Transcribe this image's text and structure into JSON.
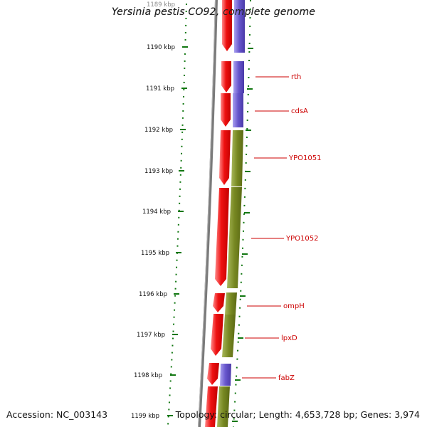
{
  "title": "Yersinia pestis CO92, complete genome",
  "footer": {
    "accession": "Accession: NC_003143",
    "topology": "Topology: circular; Length: 4,653,728 bp; Genes: 3,974"
  },
  "ruler_labels": [
    "1189 kbp",
    "1190 kbp",
    "1191 kbp",
    "1192 kbp",
    "1193 kbp",
    "1194 kbp",
    "1195 kbp",
    "1196 kbp",
    "1197 kbp",
    "1198 kbp",
    "1199 kbp"
  ],
  "colors": {
    "forward_strand": "#ee1111",
    "cog_blue": "#6655cc",
    "cog_green": "#778822",
    "backbone": "#777777",
    "ticks": "#116611",
    "label": "#cc0000"
  },
  "gene_labels": [
    "rth",
    "cdsA",
    "YPO1051",
    "YPO1052",
    "ompH",
    "lpxD",
    "fabZ"
  ]
}
